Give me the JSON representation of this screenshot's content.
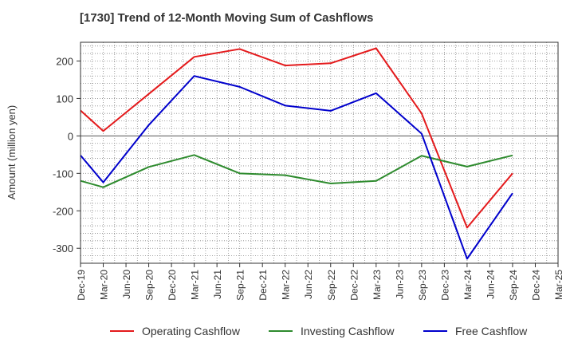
{
  "chart_data": {
    "type": "line",
    "title": "[1730]  Trend of 12-Month Moving Sum of Cashflows",
    "xlabel": "",
    "ylabel": "Amount (million yen)",
    "ylim": [
      -340,
      250
    ],
    "yticks": [
      200,
      100,
      0,
      -100,
      -200,
      -300
    ],
    "x": [
      "Dec-19",
      "Mar-20",
      "Jun-20",
      "Sep-20",
      "Dec-20",
      "Mar-21",
      "Jun-21",
      "Sep-21",
      "Dec-21",
      "Mar-22",
      "Jun-22",
      "Sep-22",
      "Dec-22",
      "Mar-23",
      "Jun-23",
      "Sep-23",
      "Dec-23",
      "Mar-24",
      "Jun-24",
      "Sep-24",
      "Dec-24",
      "Mar-25"
    ],
    "grid": true,
    "legend_position": "bottom",
    "series": [
      {
        "name": "Operating Cashflow",
        "color": "#e41a1c",
        "values": [
          68,
          13,
          null,
          112,
          null,
          211,
          null,
          232,
          null,
          188,
          null,
          194,
          null,
          234,
          null,
          60,
          null,
          -245,
          null,
          -100,
          null,
          null
        ]
      },
      {
        "name": "Investing Cashflow",
        "color": "#2e8b2e",
        "values": [
          -120,
          -137,
          null,
          -83,
          null,
          -51,
          null,
          -100,
          null,
          -105,
          null,
          -127,
          null,
          -120,
          null,
          -53,
          null,
          -82,
          null,
          -52,
          null,
          null
        ]
      },
      {
        "name": "Free Cashflow",
        "color": "#0000cc",
        "values": [
          -52,
          -124,
          null,
          29,
          null,
          160,
          null,
          131,
          null,
          81,
          null,
          67,
          null,
          114,
          null,
          6,
          null,
          -328,
          null,
          -153,
          null,
          null
        ]
      }
    ]
  }
}
